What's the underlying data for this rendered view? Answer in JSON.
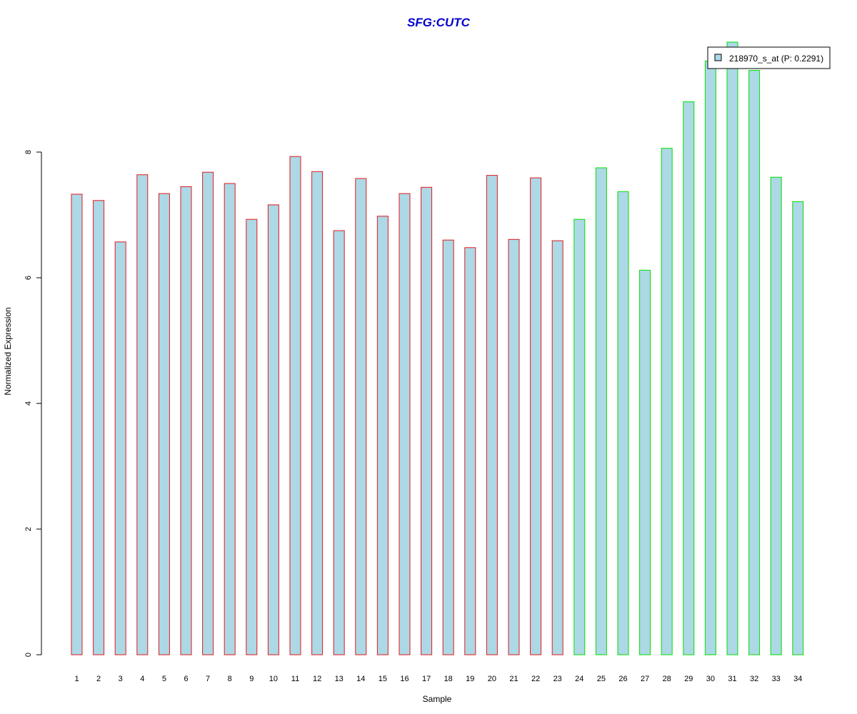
{
  "chart_data": {
    "type": "bar",
    "title": "SFG:CUTC",
    "xlabel": "Sample",
    "ylabel": "Normalized Expression",
    "categories": [
      "1",
      "2",
      "3",
      "4",
      "5",
      "6",
      "7",
      "8",
      "9",
      "10",
      "11",
      "12",
      "13",
      "14",
      "15",
      "16",
      "17",
      "18",
      "19",
      "20",
      "21",
      "22",
      "23",
      "24",
      "25",
      "26",
      "27",
      "28",
      "29",
      "30",
      "31",
      "32",
      "33",
      "34"
    ],
    "series": [
      {
        "name": "218970_s_at (P: 0.2291)",
        "values": [
          7.33,
          7.23,
          6.57,
          7.64,
          7.34,
          7.45,
          7.68,
          7.5,
          6.93,
          7.16,
          7.93,
          7.69,
          6.75,
          7.58,
          6.98,
          7.34,
          7.44,
          6.6,
          6.48,
          7.63,
          6.61,
          7.59,
          6.59,
          6.93,
          7.75,
          7.37,
          6.12,
          8.06,
          8.8,
          9.45,
          9.75,
          9.3,
          7.6,
          7.21
        ]
      }
    ],
    "group_of_sample": [
      1,
      1,
      1,
      1,
      1,
      1,
      1,
      1,
      1,
      1,
      1,
      1,
      1,
      1,
      1,
      1,
      1,
      1,
      1,
      1,
      1,
      1,
      1,
      2,
      2,
      2,
      2,
      2,
      2,
      2,
      2,
      2,
      2,
      2
    ],
    "yticks": [
      0,
      2,
      4,
      6,
      8
    ],
    "ylim": [
      0,
      9.75
    ],
    "grid": false,
    "legend_position": "top-right",
    "colors": {
      "bar_fill": "#add8e6",
      "group1_border": "#e31a1c",
      "group2_border": "#00e000",
      "title": "#0000cd",
      "axis": "#000000"
    }
  }
}
